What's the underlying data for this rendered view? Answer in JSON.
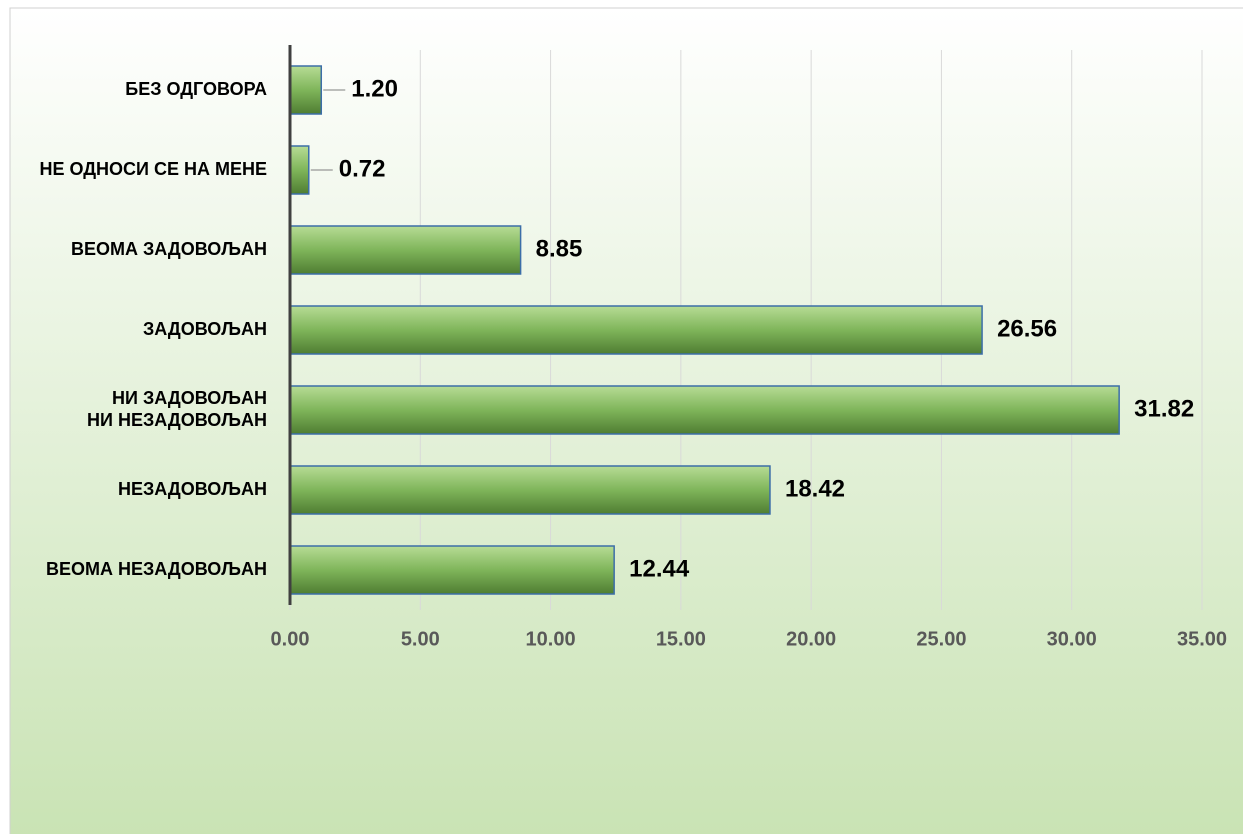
{
  "chart_data": {
    "type": "bar",
    "orientation": "horizontal",
    "categories": [
      "БЕЗ ОДГОВОРА",
      "НЕ ОДНОСИ СЕ НА МЕНЕ",
      "ВЕОМА ЗАДОВОЉАН",
      "ЗАДОВОЉАН",
      "НИ ЗАДОВОЉАН\nНИ НЕЗАДОВОЉАН",
      "НЕЗАДОВОЉАН",
      "ВЕОМА НЕЗАДОВОЉАН"
    ],
    "values": [
      1.2,
      0.72,
      8.85,
      26.56,
      31.82,
      18.42,
      12.44
    ],
    "value_labels": [
      "1.20",
      "0.72",
      "8.85",
      "26.56",
      "31.82",
      "18.42",
      "12.44"
    ],
    "color": "#7fb55a",
    "xlim": [
      0,
      35
    ],
    "xticks": [
      {
        "value": 0,
        "label": "0.00"
      },
      {
        "value": 5,
        "label": "5.00"
      },
      {
        "value": 10,
        "label": "10.00"
      },
      {
        "value": 15,
        "label": "15.00"
      },
      {
        "value": 20,
        "label": "20.00"
      },
      {
        "value": 25,
        "label": "25.00"
      },
      {
        "value": 30,
        "label": "30.00"
      },
      {
        "value": 35,
        "label": "35.00"
      }
    ],
    "grid": true
  }
}
